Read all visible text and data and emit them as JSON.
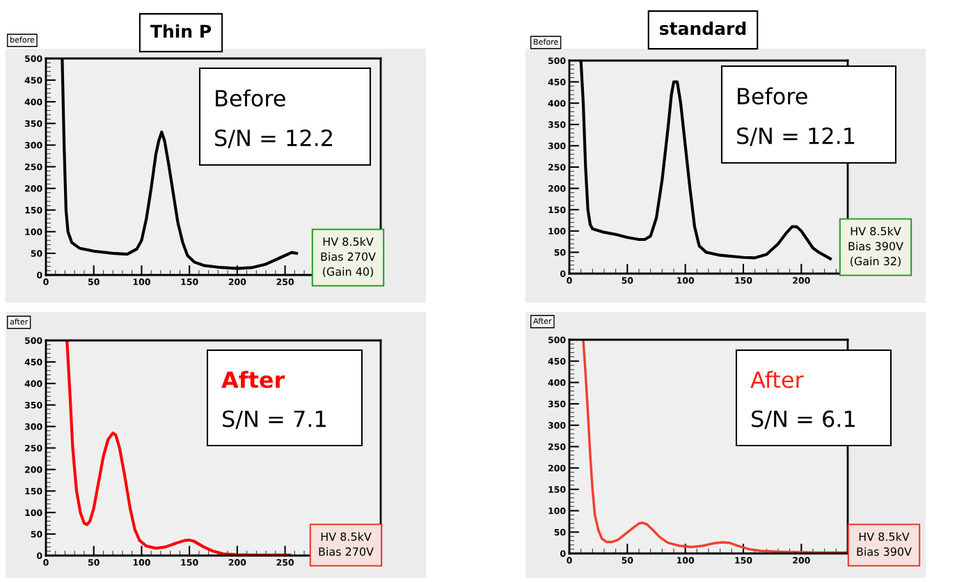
{
  "chart_data": [
    {
      "type": "line",
      "title": "Thin P",
      "subtitle": "before",
      "xlim": [
        0,
        350
      ],
      "xticks": [
        0,
        50,
        100,
        150,
        200,
        250
      ],
      "ylim": [
        0,
        500
      ],
      "yticks": [
        0,
        50,
        100,
        150,
        200,
        250,
        300,
        350,
        400,
        450,
        500
      ],
      "grid": false,
      "annotations": [
        "Before\nS/N = 12.2",
        "HV 8.5kV\nBias 270V\n(Gain 40)"
      ],
      "series": [
        {
          "color": "#000000",
          "x": [
            17,
            19,
            21,
            23,
            27,
            35,
            50,
            70,
            85,
            95,
            100,
            105,
            110,
            115,
            118,
            121,
            124,
            128,
            133,
            138,
            143,
            148,
            155,
            165,
            180,
            200,
            215,
            230,
            240,
            250,
            257,
            262
          ],
          "values": [
            500,
            300,
            150,
            100,
            75,
            62,
            55,
            50,
            48,
            60,
            80,
            130,
            200,
            280,
            310,
            330,
            310,
            260,
            190,
            120,
            75,
            45,
            30,
            22,
            18,
            15,
            17,
            25,
            35,
            45,
            52,
            50
          ]
        }
      ]
    },
    {
      "type": "line",
      "title": "standard",
      "subtitle": "Before",
      "xlim": [
        0,
        240
      ],
      "xticks": [
        0,
        50,
        100,
        150,
        200
      ],
      "ylim": [
        0,
        500
      ],
      "yticks": [
        0,
        50,
        100,
        150,
        200,
        250,
        300,
        350,
        400,
        450,
        500
      ],
      "grid": false,
      "annotations": [
        "Before\nS/N = 12.1",
        "HV 8.5kV\nBias 390V\n(Gain 32)"
      ],
      "series": [
        {
          "color": "#000000",
          "x": [
            10,
            12,
            14,
            16,
            18,
            20,
            30,
            40,
            50,
            60,
            65,
            70,
            75,
            80,
            85,
            88,
            90,
            93,
            96,
            100,
            104,
            108,
            112,
            118,
            130,
            150,
            160,
            170,
            180,
            187,
            192,
            196,
            200,
            205,
            210,
            215,
            225
          ],
          "values": [
            500,
            400,
            250,
            150,
            115,
            105,
            97,
            92,
            85,
            80,
            80,
            88,
            130,
            220,
            340,
            420,
            450,
            450,
            400,
            300,
            200,
            110,
            65,
            50,
            43,
            38,
            37,
            45,
            70,
            95,
            110,
            110,
            100,
            80,
            60,
            50,
            35
          ]
        }
      ]
    },
    {
      "type": "line",
      "subtitle": "after",
      "xlim": [
        0,
        350
      ],
      "xticks": [
        0,
        50,
        100,
        150,
        200,
        250
      ],
      "ylim": [
        0,
        500
      ],
      "yticks": [
        0,
        50,
        100,
        150,
        200,
        250,
        300,
        350,
        400,
        450,
        500
      ],
      "grid": false,
      "annotations": [
        "After\nS/N = 7.1",
        "HV 8.5kV\nBias 270V"
      ],
      "series": [
        {
          "color": "#ff0000",
          "x": [
            22,
            25,
            28,
            32,
            36,
            40,
            43,
            46,
            50,
            55,
            60,
            65,
            70,
            73,
            77,
            82,
            88,
            93,
            98,
            105,
            115,
            125,
            135,
            145,
            150,
            155,
            165,
            175,
            185,
            200,
            220,
            240,
            255
          ],
          "values": [
            500,
            380,
            250,
            150,
            100,
            75,
            72,
            80,
            110,
            170,
            230,
            270,
            285,
            280,
            250,
            190,
            110,
            60,
            35,
            22,
            17,
            20,
            28,
            35,
            36,
            33,
            20,
            10,
            4,
            2,
            1,
            1,
            1
          ]
        }
      ]
    },
    {
      "type": "line",
      "subtitle": "After",
      "xlim": [
        0,
        240
      ],
      "xticks": [
        0,
        50,
        100,
        150,
        200
      ],
      "ylim": [
        0,
        500
      ],
      "yticks": [
        0,
        50,
        100,
        150,
        200,
        250,
        300,
        350,
        400,
        450,
        500
      ],
      "grid": false,
      "annotations": [
        "After\nS/N = 6.1",
        "HV 8.5kV\nBias 390V"
      ],
      "series": [
        {
          "color": "#f04030",
          "x": [
            12,
            14,
            16,
            18,
            20,
            22,
            25,
            28,
            32,
            37,
            42,
            48,
            55,
            60,
            63,
            67,
            72,
            78,
            85,
            95,
            105,
            115,
            125,
            132,
            138,
            145,
            155,
            165,
            180,
            200,
            215,
            240
          ],
          "values": [
            500,
            420,
            330,
            230,
            150,
            90,
            55,
            35,
            27,
            27,
            32,
            45,
            60,
            70,
            72,
            68,
            55,
            38,
            25,
            18,
            15,
            18,
            24,
            26,
            25,
            18,
            10,
            6,
            4,
            3,
            2,
            2
          ]
        }
      ]
    }
  ]
}
